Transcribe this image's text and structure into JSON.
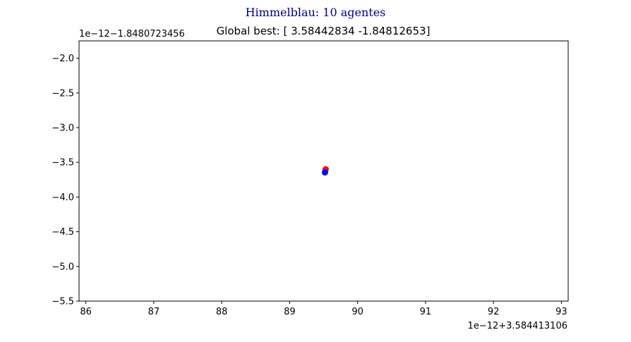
{
  "chart_data": {
    "type": "scatter",
    "title": "Himmelblau: 10 agentes",
    "subtitle": "Global best: [ 3.58442834 -1.84812653]",
    "xlabel": "",
    "ylabel": "",
    "x_offset_label": "1e−12+3.584413106",
    "y_offset_label": "1e−12−1.8480723456",
    "xlim": [
      85.9,
      93.1
    ],
    "ylim": [
      -5.5,
      -1.75
    ],
    "x_ticks": [
      86,
      87,
      88,
      89,
      90,
      91,
      92,
      93
    ],
    "x_tick_labels": [
      "86",
      "87",
      "88",
      "89",
      "90",
      "91",
      "92",
      "93"
    ],
    "y_ticks": [
      -2.0,
      -2.5,
      -3.0,
      -3.5,
      -4.0,
      -4.5,
      -5.0,
      -5.5
    ],
    "y_tick_labels": [
      "−2.0",
      "−2.5",
      "−3.0",
      "−3.5",
      "−4.0",
      "−4.5",
      "−5.0",
      "−5.5"
    ],
    "grid": false,
    "legend": "none",
    "series": [
      {
        "color": "#ff0000",
        "points": [
          {
            "x": 89.53,
            "y": -3.6
          }
        ]
      },
      {
        "color": "#0000ff",
        "points": [
          {
            "x": 89.52,
            "y": -3.645
          }
        ]
      }
    ]
  }
}
